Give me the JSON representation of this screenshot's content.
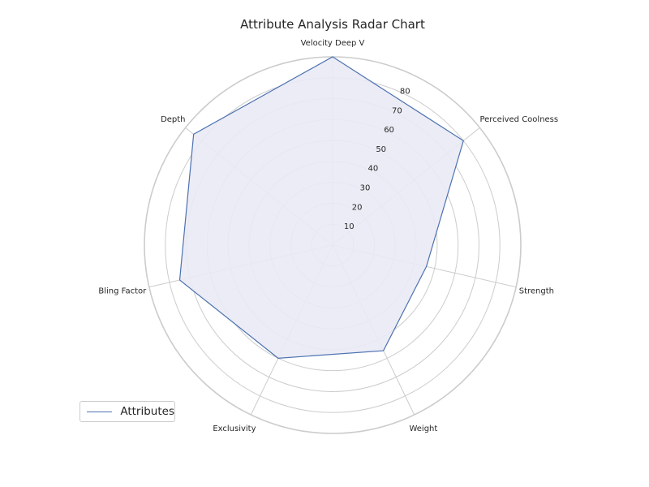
{
  "chart_data": {
    "type": "radar",
    "title": "Attribute Analysis Radar Chart",
    "categories": [
      "Velocity Deep V",
      "Perceived Coolness",
      "Strength",
      "Weight",
      "Exclusivity",
      "Bling Factor",
      "Depth"
    ],
    "series": [
      {
        "name": "Attributes",
        "values": [
          90,
          80,
          46,
          56,
          60,
          75,
          85
        ]
      }
    ],
    "r_ticks": [
      10,
      20,
      30,
      40,
      50,
      60,
      70,
      80
    ],
    "r_range": [
      0,
      90
    ],
    "grid": true,
    "legend_position": "lower-left",
    "colors": {
      "line": "#4c72b0",
      "fill": "#eaeaf5",
      "grid": "#cccccc"
    }
  }
}
